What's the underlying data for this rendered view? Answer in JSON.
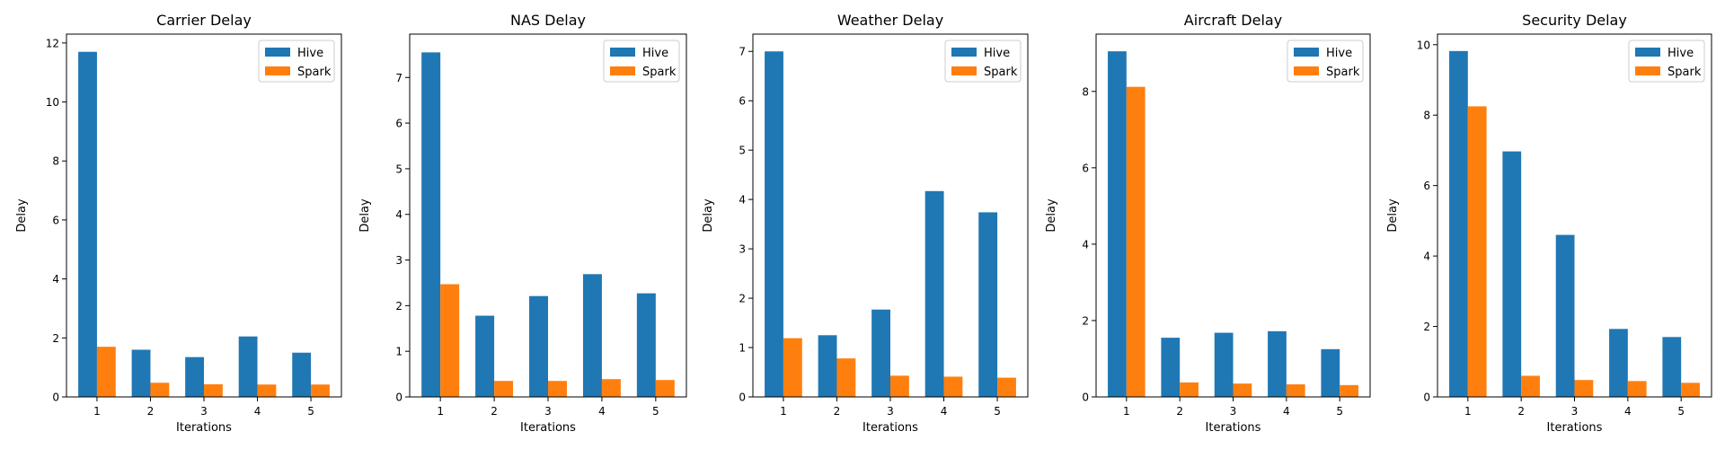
{
  "chart_data": [
    {
      "type": "bar",
      "title": "Carrier Delay",
      "xlabel": "Iterations",
      "ylabel": "Delay",
      "categories": [
        "1",
        "2",
        "3",
        "4",
        "5"
      ],
      "ylim": [
        0,
        12.3
      ],
      "yticks": [
        "0",
        "2",
        "4",
        "6",
        "8",
        "10",
        "12"
      ],
      "legend_position": "top-right",
      "series": [
        {
          "name": "Hive",
          "color": "#1f77b4",
          "values": [
            11.7,
            1.6,
            1.35,
            2.05,
            1.5
          ]
        },
        {
          "name": "Spark",
          "color": "#ff7f0e",
          "values": [
            1.7,
            0.48,
            0.43,
            0.42,
            0.42
          ]
        }
      ]
    },
    {
      "type": "bar",
      "title": "NAS Delay",
      "xlabel": "Iterations",
      "ylabel": "Delay",
      "categories": [
        "1",
        "2",
        "3",
        "4",
        "5"
      ],
      "ylim": [
        0,
        7.95
      ],
      "yticks": [
        "0",
        "1",
        "2",
        "3",
        "4",
        "5",
        "6",
        "7"
      ],
      "legend_position": "top-right",
      "series": [
        {
          "name": "Hive",
          "color": "#1f77b4",
          "values": [
            7.55,
            1.78,
            2.21,
            2.69,
            2.27
          ]
        },
        {
          "name": "Spark",
          "color": "#ff7f0e",
          "values": [
            2.47,
            0.35,
            0.35,
            0.39,
            0.37
          ]
        }
      ]
    },
    {
      "type": "bar",
      "title": "Weather Delay",
      "xlabel": "Iterations",
      "ylabel": "Delay",
      "categories": [
        "1",
        "2",
        "3",
        "4",
        "5"
      ],
      "ylim": [
        0,
        7.35
      ],
      "yticks": [
        "0",
        "1",
        "2",
        "3",
        "4",
        "5",
        "6",
        "7"
      ],
      "legend_position": "top-right",
      "series": [
        {
          "name": "Hive",
          "color": "#1f77b4",
          "values": [
            7.0,
            1.25,
            1.77,
            4.17,
            3.74
          ]
        },
        {
          "name": "Spark",
          "color": "#ff7f0e",
          "values": [
            1.19,
            0.78,
            0.43,
            0.41,
            0.39
          ]
        }
      ]
    },
    {
      "type": "bar",
      "title": "Aircraft Delay",
      "xlabel": "Iterations",
      "ylabel": "Delay",
      "categories": [
        "1",
        "2",
        "3",
        "4",
        "5"
      ],
      "ylim": [
        0,
        9.5
      ],
      "yticks": [
        "0",
        "2",
        "4",
        "6",
        "8"
      ],
      "legend_position": "top-right",
      "series": [
        {
          "name": "Hive",
          "color": "#1f77b4",
          "values": [
            9.05,
            1.55,
            1.68,
            1.72,
            1.25
          ]
        },
        {
          "name": "Spark",
          "color": "#ff7f0e",
          "values": [
            8.12,
            0.38,
            0.35,
            0.33,
            0.31
          ]
        }
      ]
    },
    {
      "type": "bar",
      "title": "Security Delay",
      "xlabel": "Iterations",
      "ylabel": "Delay",
      "categories": [
        "1",
        "2",
        "3",
        "4",
        "5"
      ],
      "ylim": [
        0,
        10.3
      ],
      "yticks": [
        "0",
        "2",
        "4",
        "6",
        "8",
        "10"
      ],
      "legend_position": "top-right",
      "series": [
        {
          "name": "Hive",
          "color": "#1f77b4",
          "values": [
            9.82,
            6.97,
            4.6,
            1.93,
            1.7
          ]
        },
        {
          "name": "Spark",
          "color": "#ff7f0e",
          "values": [
            8.25,
            0.6,
            0.48,
            0.45,
            0.4
          ]
        }
      ]
    }
  ]
}
